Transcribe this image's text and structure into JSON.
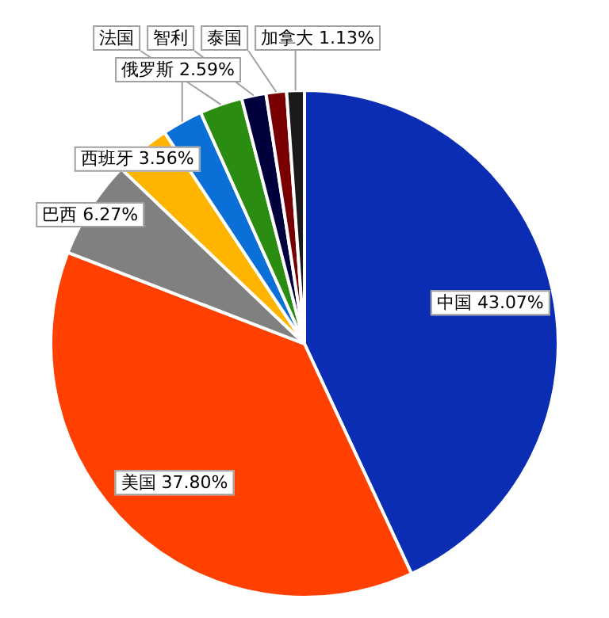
{
  "chart_data": {
    "type": "pie",
    "categories": [
      "中国",
      "美国",
      "巴西",
      "西班牙",
      "俄罗斯",
      "法国",
      "智利",
      "泰国",
      "加拿大"
    ],
    "values": [
      43.07,
      37.8,
      6.27,
      3.56,
      2.59,
      2.72,
      1.56,
      1.3,
      1.13
    ],
    "value_labels": [
      "43.07%",
      "37.80%",
      "6.27%",
      "3.56%",
      "2.59%",
      null,
      null,
      null,
      "1.13%"
    ],
    "colors": [
      "#0a2db4",
      "#ff4000",
      "#808080",
      "#ffb400",
      "#0a6fd6",
      "#2b8c12",
      "#00003c",
      "#780000",
      "#1a1a1a"
    ],
    "legend": false
  }
}
